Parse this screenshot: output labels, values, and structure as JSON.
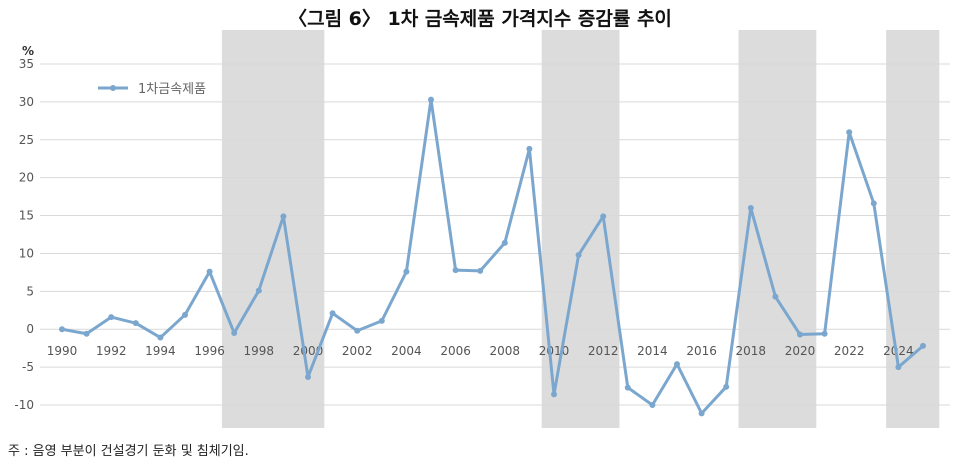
{
  "title": "〈그림 6〉 1차 금속제품 가격지수 증감률 추이",
  "note": "주 : 음영 부분이 건설경기 둔화 및 침체기임.",
  "colors": {
    "line": "#7ba7cf",
    "shade": "#dcdcdc",
    "grid": "#d9d9d9"
  },
  "chart_data": {
    "type": "line",
    "ylabel": "%",
    "ylim": [
      -10,
      35
    ],
    "yticks": [
      -10,
      -5,
      0,
      5,
      10,
      15,
      20,
      25,
      30,
      35
    ],
    "xlim": [
      1990,
      2025
    ],
    "xticks": [
      1990,
      1992,
      1994,
      1996,
      1998,
      2000,
      2002,
      2004,
      2006,
      2008,
      2010,
      2012,
      2014,
      2016,
      2018,
      2020,
      2022,
      2024
    ],
    "grid": true,
    "legend_position": "top-left",
    "shaded_periods": [
      [
        1997,
        2001
      ],
      [
        2010,
        2013
      ],
      [
        2018,
        2021
      ],
      [
        2024,
        2026
      ]
    ],
    "series": [
      {
        "name": "1차금속제품",
        "x": [
          1990,
          1991,
          1992,
          1993,
          1994,
          1995,
          1996,
          1997,
          1998,
          1999,
          2000,
          2001,
          2002,
          2003,
          2004,
          2005,
          2006,
          2007,
          2008,
          2009,
          2010,
          2011,
          2012,
          2013,
          2014,
          2015,
          2016,
          2017,
          2018,
          2019,
          2020,
          2021,
          2022,
          2023,
          2024,
          2025
        ],
        "values": [
          0.0,
          -0.6,
          1.6,
          0.8,
          -1.1,
          1.9,
          7.6,
          -0.5,
          5.1,
          14.9,
          -6.3,
          2.1,
          -0.2,
          1.1,
          7.6,
          30.3,
          7.8,
          7.7,
          11.4,
          23.8,
          -8.6,
          9.8,
          14.9,
          -7.7,
          -10.0,
          -4.6,
          -11.1,
          -7.6,
          16.0,
          4.3,
          -0.7,
          -0.6,
          26.0,
          16.6,
          -5.0,
          -2.2
        ]
      }
    ]
  }
}
